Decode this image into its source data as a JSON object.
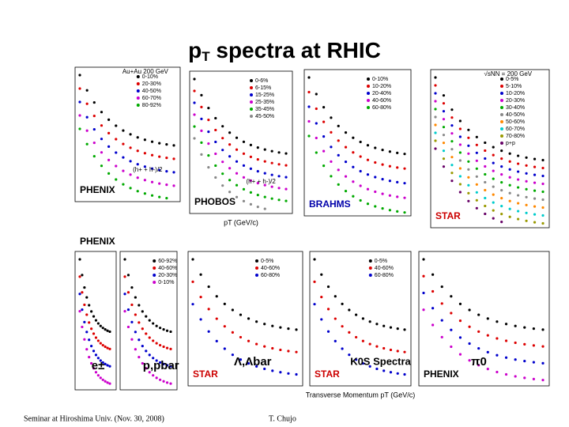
{
  "title": {
    "main": "p",
    "sub": "T",
    "rest": " spectra at RHIC"
  },
  "panels": [
    {
      "header": "Au+Au 200 GeV",
      "logo": "PHENIX",
      "note": "(h+ + h-)/2",
      "legend": [
        "0-10%",
        "20-30%",
        "40-50%",
        "60-70%",
        "80-92%"
      ]
    },
    {
      "logo": "PHOBOS",
      "note": "(h+ + h-)/2",
      "xlabel": "pT (GeV/c)",
      "legend": [
        "0-6%",
        "6-15%",
        "15-25%",
        "25-35%",
        "35-45%",
        "45-50%"
      ]
    },
    {
      "logo": "BRAHMS",
      "legend": [
        "0-10%",
        "10-20%",
        "20-40%",
        "40-60%",
        "60-80%"
      ]
    },
    {
      "logo": "STAR",
      "header": "√sNN = 200 GeV",
      "legend": [
        "0-5%",
        "5-10%",
        "10-20%",
        "20-30%",
        "30-40%",
        "40-50%",
        "50-60%",
        "60-70%",
        "70-80%",
        "p+p"
      ]
    },
    {
      "label": "e±",
      "logo": "PHENIX"
    },
    {
      "label": "p,pbar",
      "legend": [
        "60-92%",
        "40-60%",
        "20-30%",
        "0-10%"
      ]
    },
    {
      "label": "Λ,Λbar",
      "logo": "STAR",
      "legend": [
        "0-5%",
        "40-60%",
        "60-80%"
      ]
    },
    {
      "label": "K0S Spectra",
      "logo": "STAR",
      "xlabel": "Transverse Momentum pT (GeV/c)",
      "legend": [
        "0-5%",
        "40-60%",
        "60-80%"
      ]
    },
    {
      "label": "π0",
      "logo": "PHENIX"
    }
  ],
  "footer": {
    "left": "Seminar at Hiroshima Univ. (Nov. 30, 2008)",
    "right": "T. Chujo"
  }
}
